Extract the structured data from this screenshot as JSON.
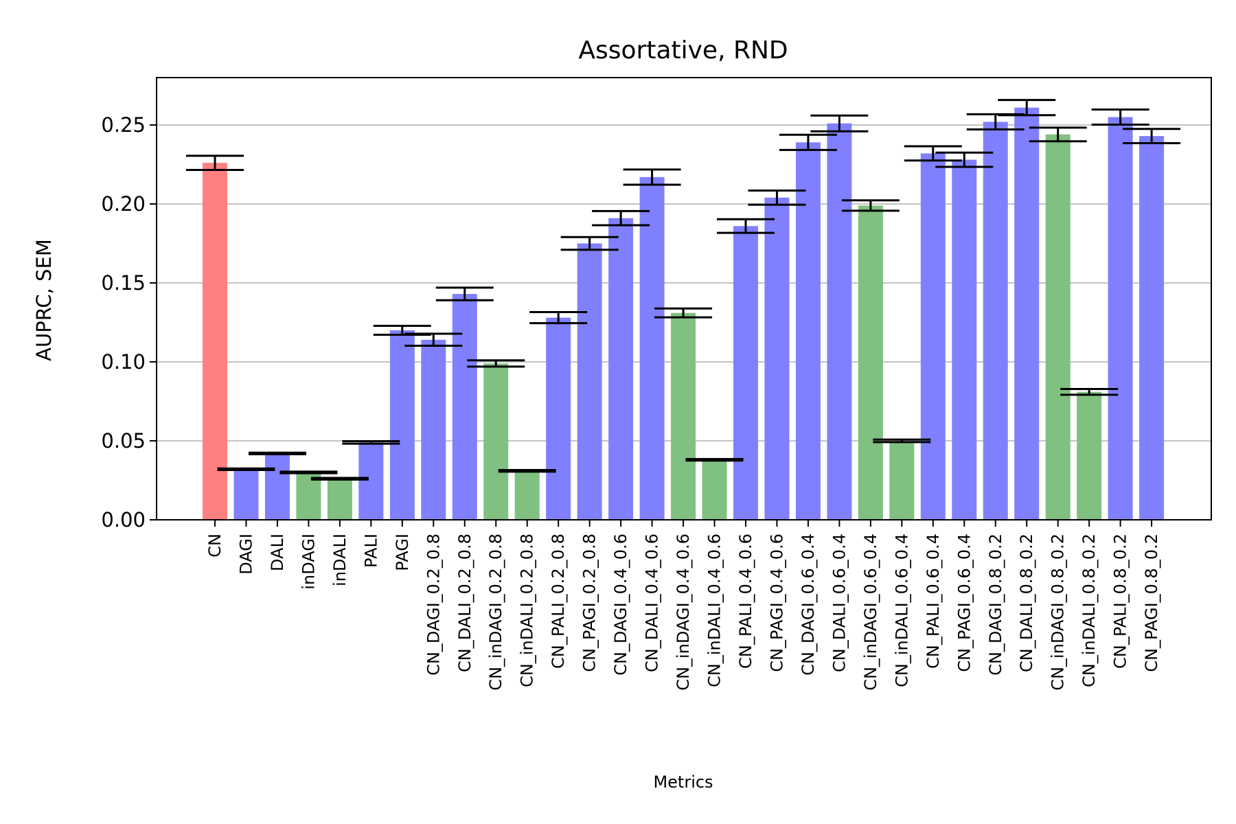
{
  "chart_data": {
    "type": "bar",
    "title": "Assortative, RND",
    "xlabel": "Metrics",
    "ylabel": "AUPRC, SEM",
    "ylim": [
      0,
      0.28
    ],
    "yticks": [
      "0.00",
      "0.05",
      "0.10",
      "0.15",
      "0.20",
      "0.25"
    ],
    "grid": "y-axis major",
    "categories": [
      "CN",
      "DAGI",
      "DALI",
      "inDAGI",
      "inDALI",
      "PALI",
      "PAGI",
      "CN_DAGI_0.2_0.8",
      "CN_DALI_0.2_0.8",
      "CN_inDAGI_0.2_0.8",
      "CN_inDALI_0.2_0.8",
      "CN_PALI_0.2_0.8",
      "CN_PAGI_0.2_0.8",
      "CN_DAGI_0.4_0.6",
      "CN_DALI_0.4_0.6",
      "CN_inDAGI_0.4_0.6",
      "CN_inDALI_0.4_0.6",
      "CN_PALI_0.4_0.6",
      "CN_PAGI_0.4_0.6",
      "CN_DAGI_0.6_0.4",
      "CN_DALI_0.6_0.4",
      "CN_inDAGI_0.6_0.4",
      "CN_inDALI_0.6_0.4",
      "CN_PALI_0.6_0.4",
      "CN_PAGI_0.6_0.4",
      "CN_DAGI_0.8_0.2",
      "CN_DALI_0.8_0.2",
      "CN_inDAGI_0.8_0.2",
      "CN_inDALI_0.8_0.2",
      "CN_PALI_0.8_0.2",
      "CN_PAGI_0.8_0.2"
    ],
    "values": [
      0.226,
      0.032,
      0.042,
      0.03,
      0.026,
      0.049,
      0.12,
      0.114,
      0.143,
      0.099,
      0.031,
      0.128,
      0.175,
      0.191,
      0.217,
      0.131,
      0.038,
      0.186,
      0.204,
      0.239,
      0.251,
      0.199,
      0.05,
      0.232,
      0.228,
      0.252,
      0.261,
      0.244,
      0.081,
      0.255,
      0.243
    ],
    "errors": [
      0.0045,
      0.0005,
      0.0005,
      0.0005,
      0.0005,
      0.0008,
      0.0028,
      0.0038,
      0.004,
      0.002,
      0.0005,
      0.0035,
      0.004,
      0.0045,
      0.0048,
      0.0028,
      0.0005,
      0.0043,
      0.0045,
      0.0048,
      0.005,
      0.0033,
      0.0008,
      0.0045,
      0.0045,
      0.0048,
      0.0048,
      0.0043,
      0.0018,
      0.0048,
      0.0045
    ],
    "bar_colors": [
      "#ff8080",
      "#8080ff",
      "#8080ff",
      "#80c080",
      "#80c080",
      "#8080ff",
      "#8080ff",
      "#8080ff",
      "#8080ff",
      "#80c080",
      "#80c080",
      "#8080ff",
      "#8080ff",
      "#8080ff",
      "#8080ff",
      "#80c080",
      "#80c080",
      "#8080ff",
      "#8080ff",
      "#8080ff",
      "#8080ff",
      "#80c080",
      "#80c080",
      "#8080ff",
      "#8080ff",
      "#8080ff",
      "#8080ff",
      "#80c080",
      "#80c080",
      "#8080ff",
      "#8080ff"
    ]
  }
}
